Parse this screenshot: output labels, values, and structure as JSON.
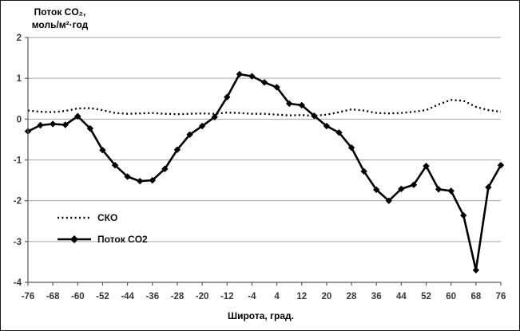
{
  "figure": {
    "y_axis_title_line1": "Поток CO₂,",
    "y_axis_title_line2": "моль/м²·год",
    "x_axis_title": "Широта, град."
  },
  "legend": {
    "items": [
      {
        "label": "СКО",
        "style": "dotted"
      },
      {
        "label": "Поток CO2",
        "style": "solid-diamond"
      }
    ]
  },
  "colors": {
    "series": "#000000",
    "gridline": "#a6a6a6",
    "axis": "#808080",
    "tick_label": "#383838"
  },
  "chart_data": {
    "type": "line",
    "title": "",
    "xlabel": "Широта, град.",
    "ylabel": "Поток CO₂, моль/м²·год",
    "x": [
      -76,
      -72,
      -68,
      -64,
      -60,
      -56,
      -52,
      -48,
      -44,
      -40,
      -36,
      -32,
      -28,
      -24,
      -20,
      -16,
      -12,
      -8,
      -4,
      0,
      4,
      8,
      12,
      16,
      20,
      24,
      28,
      32,
      36,
      40,
      44,
      48,
      52,
      56,
      60,
      64,
      68,
      72,
      76
    ],
    "series": [
      {
        "name": "СКО",
        "line": "dotted",
        "markers": false,
        "values": [
          0.21,
          0.18,
          0.17,
          0.2,
          0.26,
          0.27,
          0.22,
          0.15,
          0.13,
          0.14,
          0.15,
          0.13,
          0.12,
          0.13,
          0.14,
          0.13,
          0.16,
          0.15,
          0.13,
          0.13,
          0.11,
          0.09,
          0.1,
          0.08,
          0.11,
          0.17,
          0.24,
          0.21,
          0.15,
          0.14,
          0.15,
          0.18,
          0.22,
          0.36,
          0.47,
          0.45,
          0.3,
          0.22,
          0.18
        ]
      },
      {
        "name": "Поток CO2",
        "line": "solid",
        "markers": true,
        "values": [
          -0.3,
          -0.15,
          -0.12,
          -0.14,
          0.07,
          -0.23,
          -0.76,
          -1.13,
          -1.41,
          -1.52,
          -1.5,
          -1.22,
          -0.75,
          -0.38,
          -0.17,
          0.05,
          0.54,
          1.1,
          1.05,
          0.9,
          0.78,
          0.38,
          0.34,
          0.08,
          -0.17,
          -0.33,
          -0.7,
          -1.28,
          -1.73,
          -2.0,
          -1.71,
          -1.61,
          -1.15,
          -1.72,
          -1.76,
          -2.36,
          -3.7,
          -1.67,
          -1.13
        ]
      }
    ],
    "x_tick_labels": [
      -76,
      -68,
      -60,
      -52,
      -44,
      -36,
      -28,
      -20,
      -12,
      -4,
      4,
      12,
      20,
      28,
      36,
      44,
      52,
      60,
      68,
      76
    ],
    "y_tick_labels": [
      2,
      1,
      0,
      -1,
      -2,
      -3,
      -4
    ],
    "xlim": [
      -76,
      76
    ],
    "ylim": [
      -4,
      2
    ],
    "grid": "horizontal",
    "legend_position": "inside-left-bottom"
  }
}
